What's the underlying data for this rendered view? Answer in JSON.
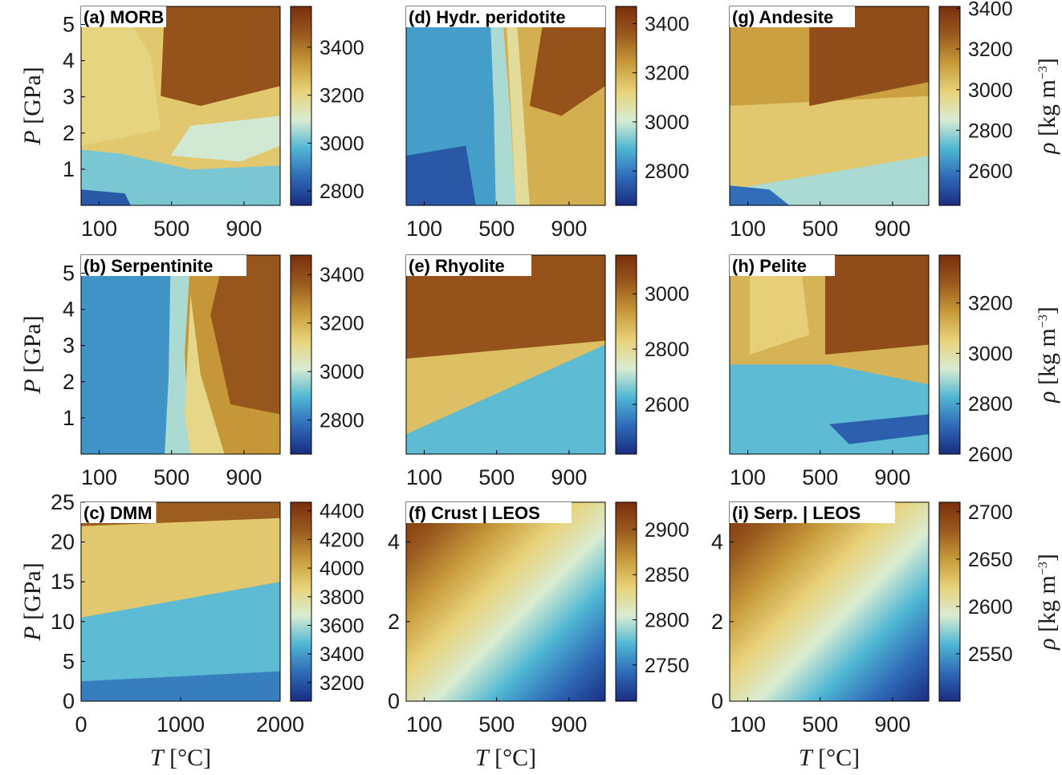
{
  "figure": {
    "colormap": {
      "name": "roma (reversed)",
      "stops": [
        "#1a2d80",
        "#2f6ab8",
        "#4fb6d3",
        "#d9ecd2",
        "#e8d27a",
        "#c79a3a",
        "#9a5a1e",
        "#7a2e0c"
      ]
    },
    "axes_text": {
      "pressure_label_symbol": "P",
      "pressure_label_unit": "[GPa]",
      "temperature_label_symbol": "T",
      "temperature_label_unit": "[°C]",
      "density_label_symbol": "ρ",
      "density_label_unit": "[kg m",
      "density_label_exp": "−3",
      "density_label_close": "]"
    }
  },
  "chart_data": [
    {
      "id": "a",
      "type": "heatmap",
      "title": "(a) MORB",
      "xlim": [
        0,
        1100
      ],
      "xticks": [
        "100",
        "500",
        "900"
      ],
      "ylim": [
        0,
        5.5
      ],
      "yticks": [
        "1",
        "2",
        "3",
        "4",
        "5"
      ],
      "clim": [
        2740,
        3570
      ],
      "cticks": [
        "2800",
        "3000",
        "3200",
        "3400"
      ],
      "ylabel_shown": true,
      "xlabel_shown": false,
      "clabel_shown": false
    },
    {
      "id": "b",
      "type": "heatmap",
      "title": "(b) Serpentinite",
      "xlim": [
        0,
        1100
      ],
      "xticks": [
        "100",
        "500",
        "900"
      ],
      "ylim": [
        0,
        5.5
      ],
      "yticks": [
        "1",
        "2",
        "3",
        "4",
        "5"
      ],
      "clim": [
        2660,
        3480
      ],
      "cticks": [
        "2800",
        "3000",
        "3200",
        "3400"
      ],
      "ylabel_shown": true,
      "xlabel_shown": false,
      "clabel_shown": false
    },
    {
      "id": "c",
      "type": "heatmap",
      "title": "(c) DMM",
      "xlim": [
        0,
        2000
      ],
      "xticks": [
        "0",
        "1000",
        "2000"
      ],
      "ylim": [
        0,
        25
      ],
      "yticks": [
        "0",
        "5",
        "10",
        "15",
        "20",
        "25"
      ],
      "clim": [
        3070,
        4460
      ],
      "cticks": [
        "3200",
        "3400",
        "3600",
        "3800",
        "4000",
        "4200",
        "4400"
      ],
      "ylabel_shown": true,
      "xlabel_shown": true,
      "clabel_shown": false
    },
    {
      "id": "d",
      "type": "heatmap",
      "title": "(d) Hydr. peridotite",
      "xlim": [
        0,
        1100
      ],
      "xticks": [
        "100",
        "500",
        "900"
      ],
      "ylim": [
        0,
        5.5
      ],
      "yticks": [],
      "clim": [
        2660,
        3470
      ],
      "cticks": [
        "2800",
        "3000",
        "3200",
        "3400"
      ],
      "ylabel_shown": false,
      "xlabel_shown": false,
      "clabel_shown": false
    },
    {
      "id": "e",
      "type": "heatmap",
      "title": "(e) Rhyolite",
      "xlim": [
        0,
        1100
      ],
      "xticks": [
        "100",
        "500",
        "900"
      ],
      "ylim": [
        0,
        5.5
      ],
      "yticks": [],
      "clim": [
        2420,
        3140
      ],
      "cticks": [
        "2600",
        "2800",
        "3000"
      ],
      "ylabel_shown": false,
      "xlabel_shown": false,
      "clabel_shown": false
    },
    {
      "id": "f",
      "type": "heatmap",
      "title": "(f) Crust | LEOS",
      "xlim": [
        0,
        1100
      ],
      "xticks": [
        "100",
        "500",
        "900"
      ],
      "ylim": [
        0,
        5
      ],
      "yticks": [
        "0",
        "2",
        "4"
      ],
      "clim": [
        2710,
        2930
      ],
      "cticks": [
        "2750",
        "2800",
        "2850",
        "2900"
      ],
      "ylabel_shown": false,
      "xlabel_shown": true,
      "clabel_shown": false
    },
    {
      "id": "g",
      "type": "heatmap",
      "title": "(g) Andesite",
      "xlim": [
        0,
        1100
      ],
      "xticks": [
        "100",
        "500",
        "900"
      ],
      "ylim": [
        0,
        5.5
      ],
      "yticks": [],
      "clim": [
        2430,
        3410
      ],
      "cticks": [
        "2600",
        "2800",
        "3000",
        "3200",
        "3400"
      ],
      "ylabel_shown": false,
      "xlabel_shown": false,
      "clabel_shown": true
    },
    {
      "id": "h",
      "type": "heatmap",
      "title": "(h) Pelite",
      "xlim": [
        0,
        1100
      ],
      "xticks": [
        "100",
        "500",
        "900"
      ],
      "ylim": [
        0,
        5.5
      ],
      "yticks": [],
      "clim": [
        2600,
        3390
      ],
      "cticks": [
        "2600",
        "2800",
        "3000",
        "3200"
      ],
      "ylabel_shown": false,
      "xlabel_shown": false,
      "clabel_shown": true
    },
    {
      "id": "i",
      "type": "heatmap",
      "title": "(i) Serp. | LEOS",
      "xlim": [
        0,
        1100
      ],
      "xticks": [
        "100",
        "500",
        "900"
      ],
      "ylim": [
        0,
        5
      ],
      "yticks": [
        "0",
        "2",
        "4"
      ],
      "clim": [
        2500,
        2710
      ],
      "cticks": [
        "2550",
        "2600",
        "2650",
        "2700"
      ],
      "ylabel_shown": false,
      "xlabel_shown": true,
      "clabel_shown": true
    }
  ]
}
